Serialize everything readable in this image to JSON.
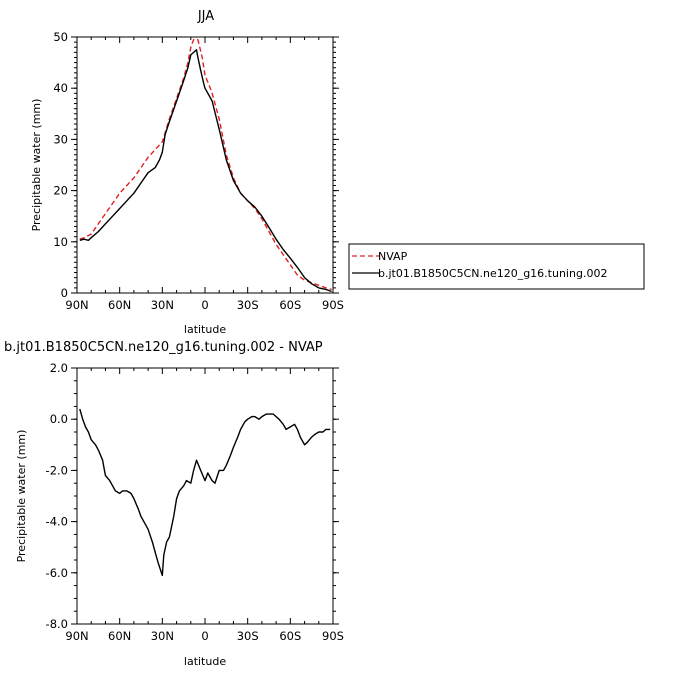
{
  "chart_data": [
    {
      "type": "line",
      "title": "JJA",
      "xlabel": "latitude",
      "ylabel": "Precipitable water (mm)",
      "xlim": [
        90,
        -90
      ],
      "ylim": [
        0,
        50
      ],
      "xticks": [
        90,
        60,
        30,
        0,
        -30,
        -60,
        -90
      ],
      "xtick_labels": [
        "90N",
        "60N",
        "30N",
        "0",
        "30S",
        "60S",
        "90S"
      ],
      "yticks": [
        0,
        10,
        20,
        30,
        40,
        50
      ],
      "ytick_labels": [
        "0",
        "10",
        "20",
        "30",
        "40",
        "50"
      ],
      "legend_position": "right",
      "series": [
        {
          "name": "NVAP",
          "color": "#e02020",
          "dash": "dashed",
          "x": [
            88,
            85,
            80,
            75,
            70,
            65,
            60,
            55,
            50,
            45,
            40,
            35,
            30,
            25,
            20,
            15,
            12,
            10,
            8,
            5,
            2,
            0,
            -3,
            -5,
            -10,
            -15,
            -20,
            -25,
            -30,
            -35,
            -40,
            -45,
            -50,
            -55,
            -60,
            -65,
            -70,
            -75,
            -80,
            -85,
            -89
          ],
          "y": [
            10.5,
            10.8,
            11.5,
            13.5,
            15.5,
            17.5,
            19.5,
            21.0,
            22.5,
            24.5,
            26.5,
            28.0,
            29.5,
            34.0,
            38.0,
            42.0,
            45.0,
            48.0,
            49.5,
            49.5,
            46.0,
            42.5,
            40.5,
            39.0,
            34.0,
            27.0,
            22.5,
            19.5,
            18.0,
            16.5,
            14.5,
            12.0,
            9.5,
            7.5,
            5.5,
            3.5,
            2.5,
            2.0,
            1.5,
            1.0,
            0.7
          ]
        },
        {
          "name": "b.jt01.B1850C5CN.ne120_g16.tuning.002",
          "color": "#000000",
          "dash": "solid",
          "x": [
            88,
            85,
            82,
            80,
            75,
            70,
            65,
            60,
            55,
            50,
            45,
            40,
            35,
            32,
            30,
            28,
            25,
            20,
            15,
            12,
            10,
            8,
            6,
            5,
            3,
            1,
            0,
            -3,
            -5,
            -10,
            -15,
            -20,
            -25,
            -30,
            -35,
            -40,
            -45,
            -50,
            -55,
            -60,
            -65,
            -70,
            -75,
            -80,
            -85,
            -89
          ],
          "y": [
            10.3,
            10.5,
            10.3,
            10.8,
            12.0,
            13.5,
            15.0,
            16.5,
            18.0,
            19.5,
            21.5,
            23.5,
            24.5,
            26.0,
            27.5,
            31.0,
            33.5,
            37.5,
            41.5,
            44.0,
            46.5,
            47.0,
            47.5,
            46.0,
            43.5,
            41.0,
            40.0,
            38.5,
            37.5,
            32.0,
            26.0,
            22.0,
            19.5,
            18.0,
            16.8,
            15.0,
            12.8,
            10.5,
            8.5,
            6.8,
            5.0,
            3.0,
            1.8,
            1.0,
            0.7,
            0.3
          ]
        }
      ]
    },
    {
      "type": "line",
      "title": "b.jt01.B1850C5CN.ne120_g16.tuning.002 - NVAP",
      "xlabel": "latitude",
      "ylabel": "Precipitable water (mm)",
      "xlim": [
        90,
        -90
      ],
      "ylim": [
        -8,
        2
      ],
      "xticks": [
        90,
        60,
        30,
        0,
        -30,
        -60,
        -90
      ],
      "xtick_labels": [
        "90N",
        "60N",
        "30N",
        "0",
        "30S",
        "60S",
        "90S"
      ],
      "yticks": [
        -8,
        -6,
        -4,
        -2,
        0,
        2
      ],
      "ytick_labels": [
        "-8.0",
        "-6.0",
        "-4.0",
        "-2.0",
        "0.0",
        "2.0"
      ],
      "series": [
        {
          "name": "",
          "color": "#000000",
          "dash": "solid",
          "x": [
            88,
            86,
            84,
            82,
            80,
            77,
            75,
            72,
            70,
            67,
            65,
            63,
            60,
            58,
            55,
            52,
            50,
            47,
            45,
            42,
            40,
            37,
            35,
            33,
            30,
            29,
            27,
            25,
            22,
            20,
            18,
            15,
            13,
            10,
            8,
            6,
            3,
            0,
            -2,
            -5,
            -7,
            -10,
            -13,
            -15,
            -18,
            -20,
            -23,
            -25,
            -28,
            -30,
            -33,
            -35,
            -38,
            -40,
            -43,
            -45,
            -48,
            -50,
            -52,
            -55,
            -57,
            -60,
            -63,
            -65,
            -67,
            -70,
            -72,
            -75,
            -77,
            -80,
            -83,
            -85,
            -88
          ],
          "y": [
            0.4,
            0.0,
            -0.3,
            -0.5,
            -0.8,
            -1.0,
            -1.2,
            -1.6,
            -2.2,
            -2.4,
            -2.6,
            -2.8,
            -2.9,
            -2.8,
            -2.8,
            -2.9,
            -3.1,
            -3.5,
            -3.8,
            -4.1,
            -4.3,
            -4.8,
            -5.2,
            -5.6,
            -6.1,
            -5.3,
            -4.8,
            -4.6,
            -3.8,
            -3.1,
            -2.8,
            -2.6,
            -2.4,
            -2.5,
            -2.0,
            -1.6,
            -2.0,
            -2.4,
            -2.1,
            -2.4,
            -2.5,
            -2.0,
            -2.0,
            -1.8,
            -1.4,
            -1.1,
            -0.7,
            -0.4,
            -0.1,
            0.0,
            0.1,
            0.1,
            0.0,
            0.1,
            0.2,
            0.2,
            0.2,
            0.1,
            0.0,
            -0.2,
            -0.4,
            -0.3,
            -0.2,
            -0.4,
            -0.7,
            -1.0,
            -0.9,
            -0.7,
            -0.6,
            -0.5,
            -0.5,
            -0.4,
            -0.4
          ]
        }
      ]
    }
  ]
}
